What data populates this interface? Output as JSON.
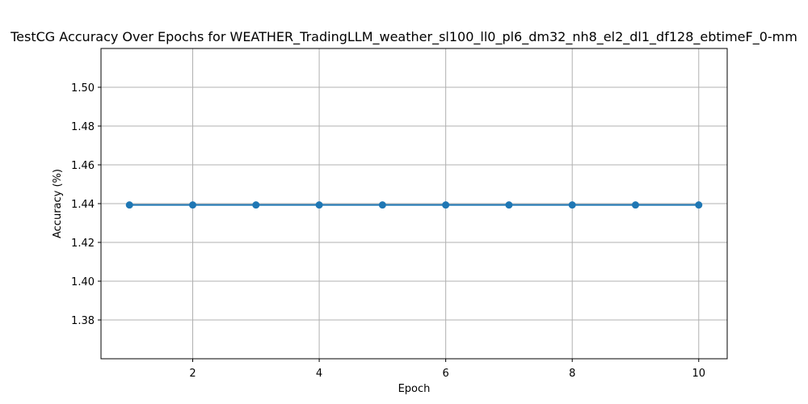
{
  "chart_data": {
    "type": "line",
    "title": "TestCG Accuracy Over Epochs for WEATHER_TradingLLM_weather_sl100_ll0_pl6_dm32_nh8_el2_dl1_df128_ebtimeF_0-mm",
    "xlabel": "Epoch",
    "ylabel": "Accuracy (%)",
    "xlim": [
      0.55,
      10.45
    ],
    "ylim": [
      1.36,
      1.52
    ],
    "xticks": [
      2,
      4,
      6,
      8,
      10
    ],
    "xtick_labels": [
      "2",
      "4",
      "6",
      "8",
      "10"
    ],
    "yticks": [
      1.38,
      1.4,
      1.42,
      1.44,
      1.46,
      1.48,
      1.5
    ],
    "ytick_labels": [
      "1.38",
      "1.40",
      "1.42",
      "1.44",
      "1.46",
      "1.48",
      "1.50"
    ],
    "grid": true,
    "series": [
      {
        "x": [
          1,
          2,
          3,
          4,
          5,
          6,
          7,
          8,
          9,
          10
        ],
        "y": [
          1.4393,
          1.4393,
          1.4393,
          1.4393,
          1.4393,
          1.4393,
          1.4393,
          1.4393,
          1.4393,
          1.4393
        ],
        "color": "#1f77b4",
        "marker": "circle"
      }
    ]
  }
}
